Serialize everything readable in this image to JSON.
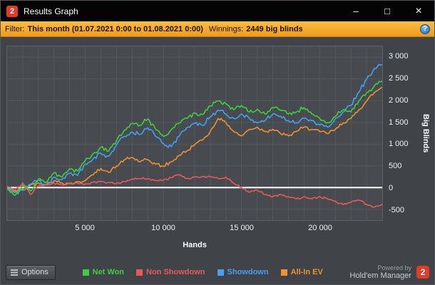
{
  "window": {
    "title": "Results Graph"
  },
  "titlebar": {
    "logo_glyph": "2",
    "minimize_glyph": "–",
    "maximize_glyph": "□",
    "close_glyph": "×"
  },
  "filter": {
    "label": "Filter:",
    "range": "This month (01.07.2021 0:00 to 01.08.2021 0:00)",
    "winnings_label": "Winnings:",
    "winnings_value": "2449 big blinds",
    "help_glyph": "?"
  },
  "chart_data": {
    "type": "line",
    "title": "",
    "xlabel": "Hands",
    "ylabel": "Big Blinds",
    "xlim": [
      0,
      24000
    ],
    "ylim": [
      -750,
      3250
    ],
    "x_grid_step": 1000,
    "grid": true,
    "legend_position": "bottom",
    "background": "#474a4f",
    "grid_color": "#55585e",
    "zero_line_color": "#ffffff",
    "jitter_seed": 42,
    "jitter_substeps": 5,
    "x_ticks": [
      {
        "value": 5000,
        "label": "5 000"
      },
      {
        "value": 10000,
        "label": "10 000"
      },
      {
        "value": 15000,
        "label": "15 000"
      },
      {
        "value": 20000,
        "label": "20 000"
      }
    ],
    "y_ticks": [
      {
        "value": 3000,
        "label": "3 000"
      },
      {
        "value": 2500,
        "label": "2 500"
      },
      {
        "value": 2000,
        "label": "2 000"
      },
      {
        "value": 1500,
        "label": "1 500"
      },
      {
        "value": 1000,
        "label": "1 000"
      },
      {
        "value": 500,
        "label": "500"
      },
      {
        "value": 0,
        "label": "0"
      },
      {
        "value": -500,
        "label": "-500"
      }
    ],
    "series": [
      {
        "name": "Net Won",
        "color": "#3ecf3e",
        "jitter": 55,
        "points": [
          [
            0,
            0
          ],
          [
            500,
            -180
          ],
          [
            1000,
            60
          ],
          [
            1500,
            -80
          ],
          [
            2000,
            200
          ],
          [
            2500,
            120
          ],
          [
            3000,
            340
          ],
          [
            3500,
            240
          ],
          [
            4000,
            430
          ],
          [
            4500,
            380
          ],
          [
            5000,
            620
          ],
          [
            5500,
            780
          ],
          [
            6000,
            930
          ],
          [
            6500,
            840
          ],
          [
            7000,
            1080
          ],
          [
            7500,
            1320
          ],
          [
            8000,
            1480
          ],
          [
            8500,
            1430
          ],
          [
            9000,
            1580
          ],
          [
            9500,
            1340
          ],
          [
            10000,
            1180
          ],
          [
            10500,
            1330
          ],
          [
            11000,
            1480
          ],
          [
            11500,
            1590
          ],
          [
            12000,
            1720
          ],
          [
            12500,
            1680
          ],
          [
            13000,
            1880
          ],
          [
            13500,
            1990
          ],
          [
            14000,
            1930
          ],
          [
            14500,
            1790
          ],
          [
            15000,
            1890
          ],
          [
            15500,
            1740
          ],
          [
            16000,
            1800
          ],
          [
            16500,
            1690
          ],
          [
            17000,
            1840
          ],
          [
            17500,
            1780
          ],
          [
            18000,
            1690
          ],
          [
            18500,
            1740
          ],
          [
            19000,
            1840
          ],
          [
            19500,
            1690
          ],
          [
            20000,
            1590
          ],
          [
            20500,
            1490
          ],
          [
            21000,
            1640
          ],
          [
            21500,
            1790
          ],
          [
            22000,
            1740
          ],
          [
            22500,
            1990
          ],
          [
            23000,
            2180
          ],
          [
            23500,
            2340
          ],
          [
            24000,
            2449
          ]
        ]
      },
      {
        "name": "Non Showdown",
        "color": "#e85a5a",
        "jitter": 30,
        "points": [
          [
            0,
            30
          ],
          [
            500,
            -60
          ],
          [
            1000,
            110
          ],
          [
            1500,
            -160
          ],
          [
            2000,
            40
          ],
          [
            2500,
            60
          ],
          [
            3000,
            100
          ],
          [
            3500,
            60
          ],
          [
            4000,
            100
          ],
          [
            4500,
            100
          ],
          [
            5000,
            80
          ],
          [
            5500,
            120
          ],
          [
            6000,
            140
          ],
          [
            6500,
            120
          ],
          [
            7000,
            100
          ],
          [
            7500,
            140
          ],
          [
            8000,
            200
          ],
          [
            8500,
            210
          ],
          [
            9000,
            200
          ],
          [
            9500,
            160
          ],
          [
            10000,
            170
          ],
          [
            10500,
            230
          ],
          [
            11000,
            290
          ],
          [
            11500,
            210
          ],
          [
            12000,
            240
          ],
          [
            12500,
            250
          ],
          [
            13000,
            250
          ],
          [
            13500,
            210
          ],
          [
            14000,
            240
          ],
          [
            14500,
            100
          ],
          [
            15000,
            0
          ],
          [
            15500,
            -110
          ],
          [
            16000,
            -60
          ],
          [
            16500,
            -160
          ],
          [
            17000,
            -210
          ],
          [
            17500,
            -160
          ],
          [
            18000,
            -210
          ],
          [
            18500,
            -260
          ],
          [
            19000,
            -210
          ],
          [
            19500,
            -260
          ],
          [
            20000,
            -210
          ],
          [
            20500,
            -260
          ],
          [
            21000,
            -310
          ],
          [
            21500,
            -390
          ],
          [
            22000,
            -340
          ],
          [
            22500,
            -290
          ],
          [
            23000,
            -390
          ],
          [
            23500,
            -450
          ],
          [
            24000,
            -380
          ]
        ]
      },
      {
        "name": "Showdown",
        "color": "#44a0f0",
        "jitter": 55,
        "points": [
          [
            0,
            -30
          ],
          [
            500,
            -120
          ],
          [
            1000,
            -60
          ],
          [
            1500,
            80
          ],
          [
            2000,
            160
          ],
          [
            2500,
            60
          ],
          [
            3000,
            240
          ],
          [
            3500,
            180
          ],
          [
            4000,
            330
          ],
          [
            4500,
            280
          ],
          [
            5000,
            540
          ],
          [
            5500,
            660
          ],
          [
            6000,
            790
          ],
          [
            6500,
            720
          ],
          [
            7000,
            980
          ],
          [
            7500,
            1180
          ],
          [
            8000,
            1280
          ],
          [
            8500,
            1220
          ],
          [
            9000,
            1380
          ],
          [
            9500,
            1180
          ],
          [
            10000,
            1010
          ],
          [
            10500,
            940
          ],
          [
            11000,
            1180
          ],
          [
            11500,
            1380
          ],
          [
            12000,
            1480
          ],
          [
            12500,
            1430
          ],
          [
            13000,
            1630
          ],
          [
            13500,
            1780
          ],
          [
            14000,
            1690
          ],
          [
            14500,
            1590
          ],
          [
            15000,
            1690
          ],
          [
            15500,
            1590
          ],
          [
            16000,
            1490
          ],
          [
            16500,
            1540
          ],
          [
            17000,
            1690
          ],
          [
            17500,
            1640
          ],
          [
            18000,
            1540
          ],
          [
            18500,
            1490
          ],
          [
            19000,
            1590
          ],
          [
            19500,
            1540
          ],
          [
            20000,
            1440
          ],
          [
            20500,
            1390
          ],
          [
            21000,
            1590
          ],
          [
            21500,
            1740
          ],
          [
            22000,
            1890
          ],
          [
            22500,
            2190
          ],
          [
            23000,
            2490
          ],
          [
            23500,
            2740
          ],
          [
            24000,
            2829
          ]
        ]
      },
      {
        "name": "All-In EV",
        "color": "#f0922e",
        "jitter": 45,
        "points": [
          [
            0,
            -20
          ],
          [
            500,
            -80
          ],
          [
            1000,
            -40
          ],
          [
            1500,
            60
          ],
          [
            2000,
            110
          ],
          [
            2500,
            60
          ],
          [
            3000,
            150
          ],
          [
            3500,
            110
          ],
          [
            4000,
            90
          ],
          [
            4500,
            130
          ],
          [
            5000,
            160
          ],
          [
            5500,
            290
          ],
          [
            6000,
            440
          ],
          [
            6500,
            350
          ],
          [
            7000,
            490
          ],
          [
            7500,
            640
          ],
          [
            8000,
            690
          ],
          [
            8500,
            590
          ],
          [
            9000,
            640
          ],
          [
            9500,
            540
          ],
          [
            10000,
            490
          ],
          [
            10500,
            590
          ],
          [
            11000,
            740
          ],
          [
            11500,
            840
          ],
          [
            12000,
            990
          ],
          [
            12500,
            1090
          ],
          [
            13000,
            1290
          ],
          [
            13500,
            1590
          ],
          [
            14000,
            1490
          ],
          [
            14500,
            1290
          ],
          [
            15000,
            1190
          ],
          [
            15500,
            1340
          ],
          [
            16000,
            1390
          ],
          [
            16500,
            1290
          ],
          [
            17000,
            1340
          ],
          [
            17500,
            1240
          ],
          [
            18000,
            1190
          ],
          [
            18500,
            1290
          ],
          [
            19000,
            1390
          ],
          [
            19500,
            1340
          ],
          [
            20000,
            1290
          ],
          [
            20500,
            1240
          ],
          [
            21000,
            1340
          ],
          [
            21500,
            1490
          ],
          [
            22000,
            1590
          ],
          [
            22500,
            1790
          ],
          [
            23000,
            1990
          ],
          [
            23500,
            2190
          ],
          [
            24000,
            2310
          ]
        ]
      }
    ]
  },
  "bottombar": {
    "options_label": "Options",
    "powered_by": "Powered by",
    "brand": "Hold'em Manager",
    "brand_logo_glyph": "2"
  }
}
